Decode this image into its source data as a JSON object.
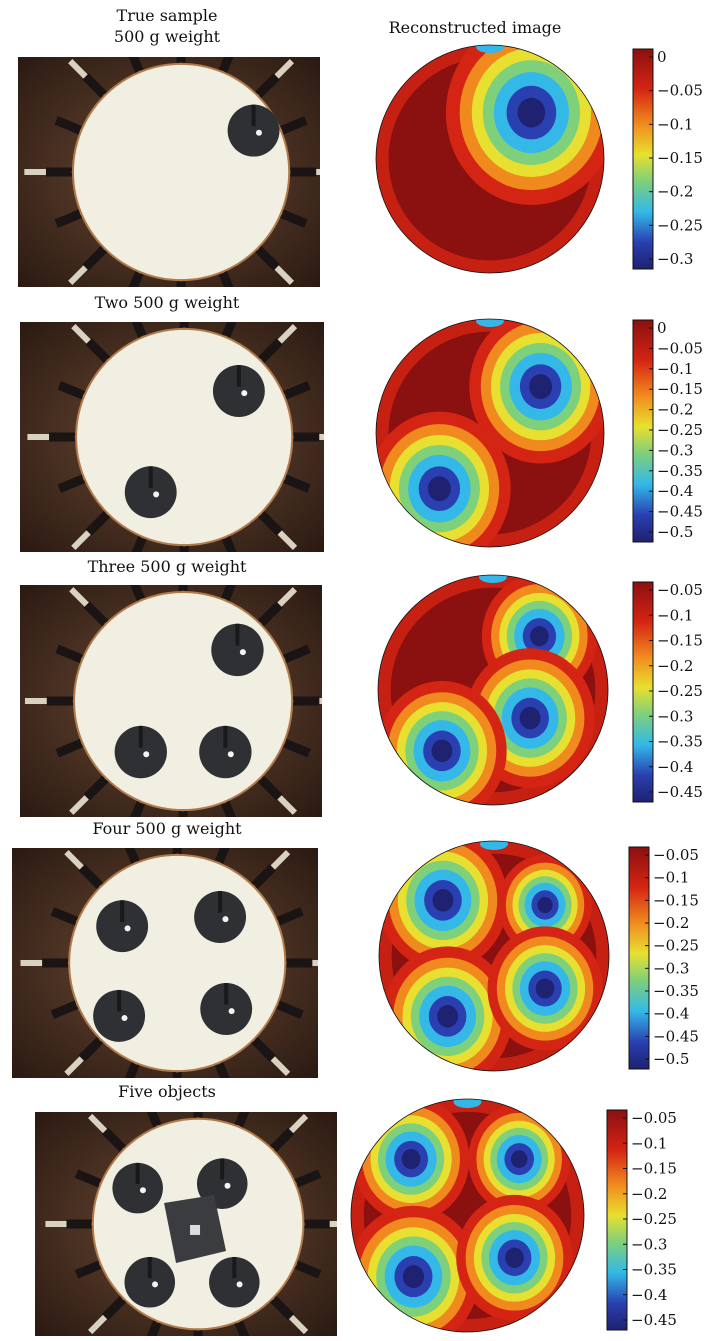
{
  "header": {
    "left_line1": "True sample",
    "left_line2": "500 g weight",
    "right": "Reconstructed image"
  },
  "panels": [
    {
      "label": "",
      "photo_weights": 1,
      "ticks": [
        "0",
        "−0.05",
        "−0.1",
        "−0.15",
        "−0.2",
        "−0.25",
        "−0.3"
      ]
    },
    {
      "label": "Two 500 g weight",
      "photo_weights": 2,
      "ticks": [
        "0",
        "−0.05",
        "−0.1",
        "−0.15",
        "−0.2",
        "−0.25",
        "−0.3",
        "−0.35",
        "−0.4",
        "−0.45",
        "−0.5"
      ]
    },
    {
      "label": "Three 500 g weight",
      "photo_weights": 3,
      "ticks": [
        "−0.05",
        "−0.1",
        "−0.15",
        "−0.2",
        "−0.25",
        "−0.3",
        "−0.35",
        "−0.4",
        "−0.45"
      ]
    },
    {
      "label": "Four 500 g weight",
      "photo_weights": 4,
      "ticks": [
        "−0.05",
        "−0.1",
        "−0.15",
        "−0.2",
        "−0.25",
        "−0.3",
        "−0.35",
        "−0.4",
        "−0.45",
        "−0.5"
      ]
    },
    {
      "label": "Five objects",
      "photo_weights": 5,
      "ticks": [
        "−0.05",
        "−0.1",
        "−0.15",
        "−0.2",
        "−0.25",
        "−0.3",
        "−0.35",
        "−0.4",
        "−0.45"
      ]
    }
  ],
  "colors": {
    "map_dark_red": "#8b1010",
    "map_red": "#d42414",
    "map_orange": "#f08a1e",
    "map_yellow": "#e8e030",
    "map_green": "#7fd07a",
    "map_cyan": "#34b8e8",
    "map_blue": "#2a3fb0",
    "map_navy": "#1e2270",
    "plate": "#f1eee2",
    "weight": "#2e3034",
    "background_wood": "#5a3a26"
  }
}
